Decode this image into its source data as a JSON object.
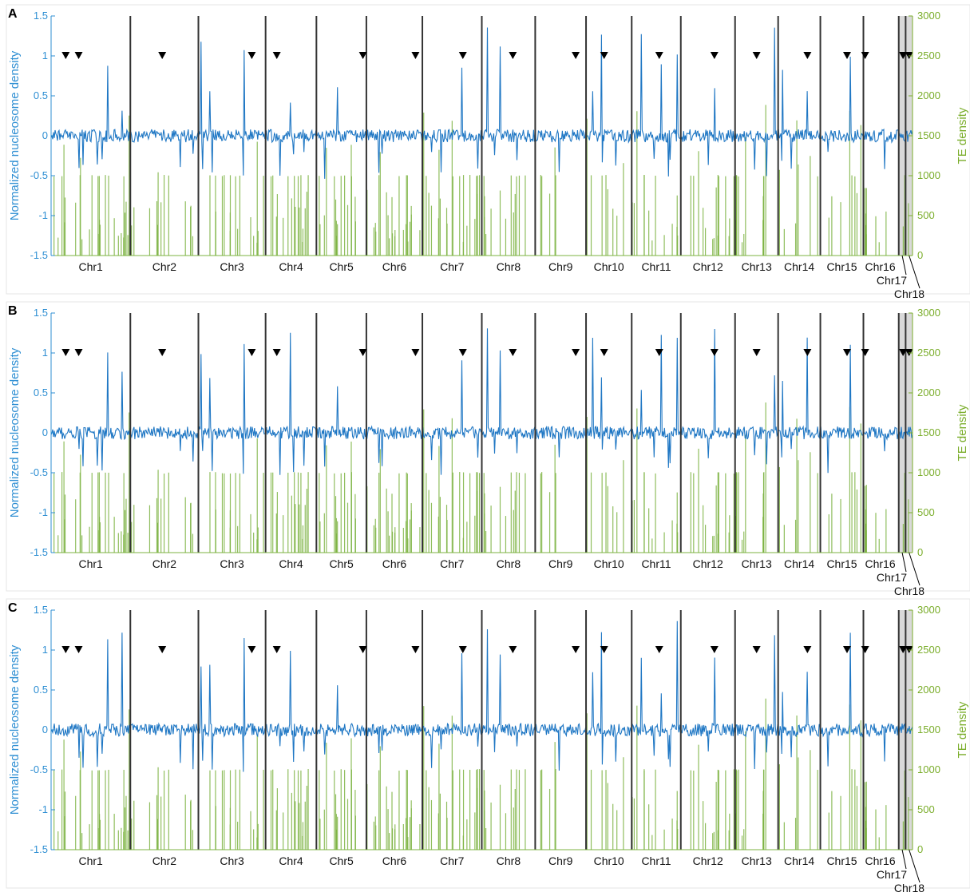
{
  "chart_data": {
    "type": "line",
    "panels": [
      {
        "label": "A"
      },
      {
        "label": "B"
      },
      {
        "label": "C"
      }
    ],
    "ylabel_left": "Normalized nucleosome density",
    "ylabel_right": "TE density",
    "ylim_left": [
      -1.5,
      1.5
    ],
    "ylim_right": [
      0,
      3000
    ],
    "yticks_left": [
      "1.5",
      "1",
      "0.5",
      "0",
      "-0.5",
      "-1",
      "-1.5"
    ],
    "yticks_right": [
      "3000",
      "2500",
      "2000",
      "1500",
      "1000",
      "500",
      "0"
    ],
    "chromosomes": [
      {
        "name": "Chr1",
        "start": 0,
        "end": 9.2
      },
      {
        "name": "Chr2",
        "start": 9.2,
        "end": 17.1
      },
      {
        "name": "Chr3",
        "start": 17.1,
        "end": 24.9
      },
      {
        "name": "Chr4",
        "start": 24.9,
        "end": 30.8
      },
      {
        "name": "Chr5",
        "start": 30.8,
        "end": 36.6
      },
      {
        "name": "Chr6",
        "start": 36.6,
        "end": 43.1
      },
      {
        "name": "Chr7",
        "start": 43.1,
        "end": 50.0
      },
      {
        "name": "Chr8",
        "start": 50.0,
        "end": 56.2
      },
      {
        "name": "Chr9",
        "start": 56.2,
        "end": 62.1
      },
      {
        "name": "Chr10",
        "start": 62.1,
        "end": 67.4
      },
      {
        "name": "Chr11",
        "start": 67.4,
        "end": 73.1
      },
      {
        "name": "Chr12",
        "start": 73.1,
        "end": 79.4
      },
      {
        "name": "Chr13",
        "start": 79.4,
        "end": 84.4
      },
      {
        "name": "Chr14",
        "start": 84.4,
        "end": 89.3
      },
      {
        "name": "Chr15",
        "start": 89.3,
        "end": 94.3
      },
      {
        "name": "Chr16",
        "start": 94.3,
        "end": 98.4
      },
      {
        "name": "Chr17",
        "start": 98.4,
        "end": 99.2
      },
      {
        "name": "Chr18",
        "start": 99.2,
        "end": 100
      }
    ],
    "marker_positions": [
      1.7,
      3.2,
      12.9,
      23.3,
      26.2,
      36.2,
      42.3,
      47.8,
      53.6,
      60.9,
      64.2,
      70.6,
      77.0,
      81.9,
      87.8,
      92.4,
      94.5,
      98.9,
      99.6
    ],
    "nucleosome_baseline": 0.0,
    "colors": {
      "nucleosome": "#1f77c4",
      "te": "#7cb342",
      "boundary": "#333333",
      "marker": "#000000",
      "ytick_left": "#2f8fd3",
      "ytick_right": "#7aad2a"
    },
    "series": [
      {
        "name": "Normalized nucleosome density",
        "axis": "left"
      },
      {
        "name": "TE density",
        "axis": "right"
      }
    ]
  }
}
